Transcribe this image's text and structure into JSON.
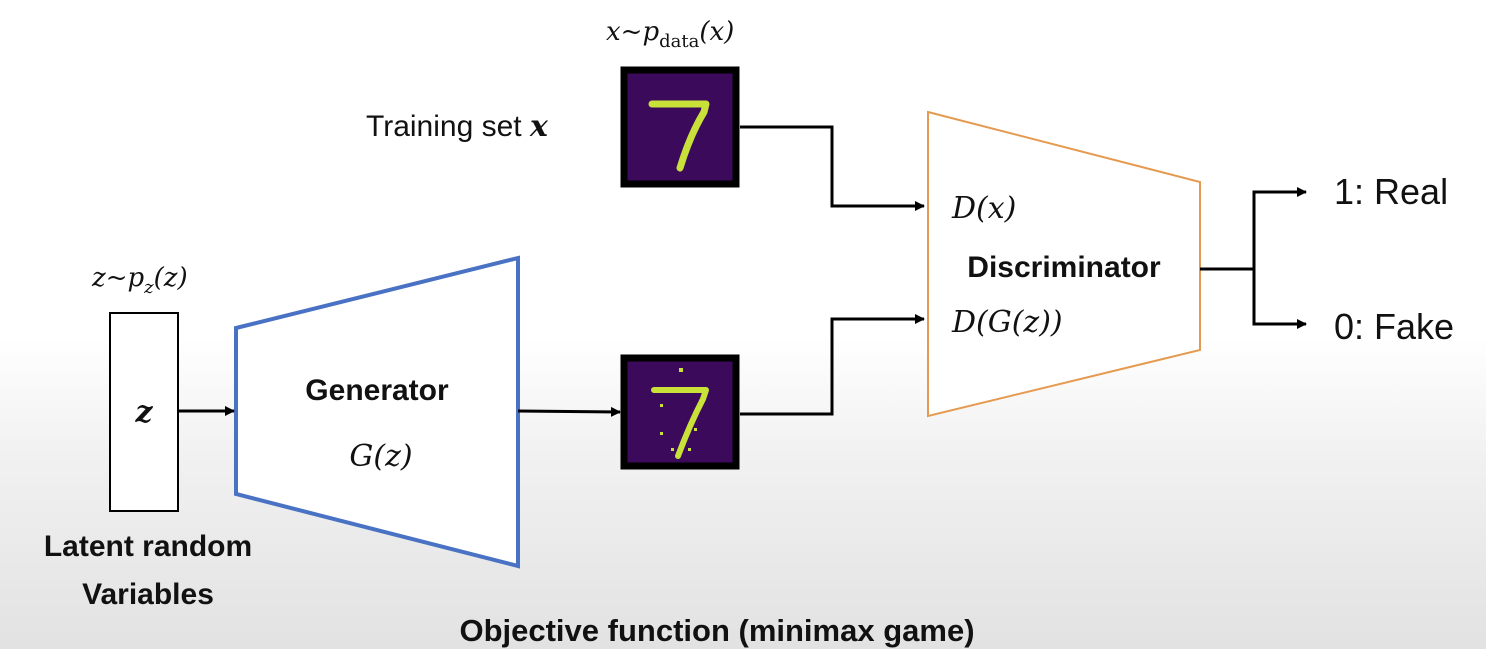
{
  "data_distribution": {
    "base": "x~p",
    "subscript": "data",
    "suffix": "(x)"
  },
  "training_set": {
    "label": "Training set ",
    "var": "x"
  },
  "latent": {
    "base": "z~p",
    "subscript": "z",
    "suffix": "(z)",
    "box_label": "z",
    "caption_line1": "Latent random",
    "caption_line2": "Variables"
  },
  "generator": {
    "title": "Generator",
    "formula": "G(z)"
  },
  "discriminator": {
    "title": "Discriminator",
    "input_real": "D(x)",
    "input_fake": "D(G(z))"
  },
  "outputs": {
    "real": "1: Real",
    "fake": "0: Fake"
  },
  "objective": "Objective function (minimax game)",
  "colors": {
    "generator_stroke": "#4a72c4",
    "discriminator_stroke": "#e59a50",
    "image_bg": "#3b0a5a",
    "digit": "#c9e23a"
  }
}
